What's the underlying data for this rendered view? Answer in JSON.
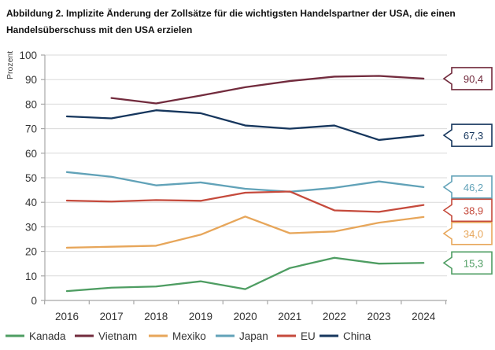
{
  "title": "Abbildung 2. Implizite Änderung der Zollsätze für die wichtigsten Handelspartner der USA, die einen Handelsüberschuss mit den USA erzielen",
  "chart_data": {
    "type": "line",
    "ylabel": "Prozent",
    "ylim": [
      0,
      100
    ],
    "ytick_step": 10,
    "yticks": [
      0,
      10,
      20,
      30,
      40,
      50,
      60,
      70,
      80,
      90,
      100
    ],
    "grid": true,
    "legend_position": "bottom",
    "x": [
      2016,
      2017,
      2018,
      2019,
      2020,
      2021,
      2022,
      2023,
      2024
    ],
    "series": [
      {
        "name": "Kanada",
        "color": "#4e9d62",
        "values": [
          3.8,
          5.2,
          5.7,
          7.8,
          4.6,
          13.2,
          17.4,
          15.0,
          15.3
        ],
        "end_label": "15,3"
      },
      {
        "name": "Vietnam",
        "color": "#722b3d",
        "values": [
          null,
          82.5,
          80.3,
          83.5,
          86.9,
          89.4,
          91.2,
          91.5,
          90.4
        ],
        "end_label": "90,4"
      },
      {
        "name": "Mexiko",
        "color": "#e7a65a",
        "values": [
          21.5,
          21.9,
          22.3,
          26.8,
          34.2,
          27.4,
          28.1,
          31.7,
          34.0
        ],
        "end_label": "34,0"
      },
      {
        "name": "Japan",
        "color": "#61a2b8",
        "values": [
          52.3,
          50.4,
          46.9,
          48.1,
          45.5,
          44.3,
          45.9,
          48.5,
          46.2
        ],
        "end_label": "46,2"
      },
      {
        "name": "EU",
        "color": "#c54a3c",
        "values": [
          40.7,
          40.3,
          40.9,
          40.6,
          43.9,
          44.4,
          36.7,
          36.1,
          38.9
        ],
        "end_label": "38,9"
      },
      {
        "name": "China",
        "color": "#16365d",
        "values": [
          75.0,
          74.2,
          77.5,
          76.3,
          71.3,
          70.0,
          71.3,
          65.4,
          67.3
        ],
        "end_label": "67,3"
      }
    ]
  },
  "colors": {
    "gridline": "#d9d9d9",
    "axis": "#a6a6a6",
    "tick_text": "#333333",
    "axis_label_text": "#404040",
    "label_box_fill": "#ffffff"
  }
}
